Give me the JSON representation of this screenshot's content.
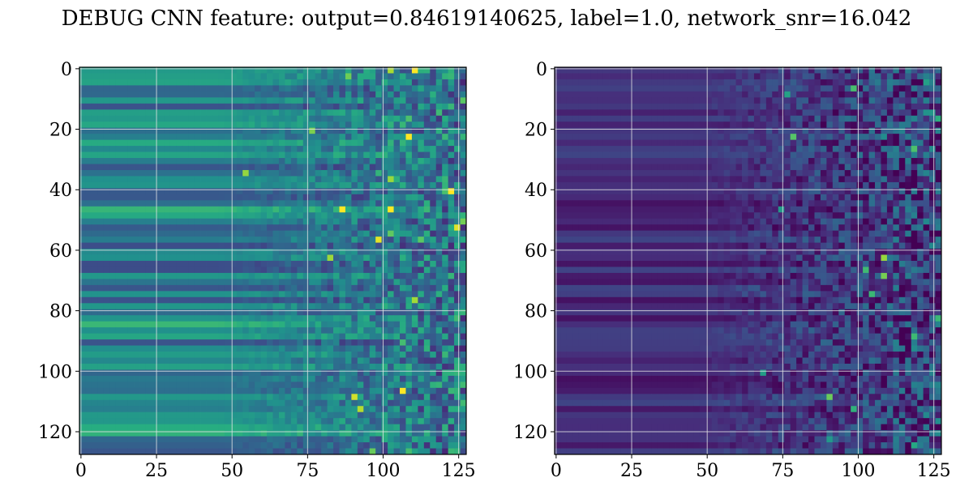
{
  "title": "DEBUG CNN feature: output=0.84619140625, label=1.0, network_snr=16.042",
  "chart_data": [
    {
      "type": "heatmap",
      "colormap": "viridis",
      "shape": [
        128,
        128
      ],
      "xlim": [
        0,
        127
      ],
      "ylim": [
        127,
        0
      ],
      "xticks": [
        0,
        25,
        50,
        75,
        100,
        125
      ],
      "yticks": [
        0,
        20,
        40,
        60,
        80,
        100,
        120
      ],
      "grid": true,
      "value_range": [
        0,
        1
      ],
      "pattern": "horizontal banded rows for columns 0-50, noisy speckled texture increasing toward columns 75-127",
      "mean_level_smooth": 0.45,
      "mean_level_noisy": 0.4
    },
    {
      "type": "heatmap",
      "colormap": "viridis",
      "shape": [
        128,
        128
      ],
      "xlim": [
        0,
        127
      ],
      "ylim": [
        127,
        0
      ],
      "xticks": [
        0,
        25,
        50,
        75,
        100,
        125
      ],
      "yticks": [
        0,
        20,
        40,
        60,
        80,
        100,
        120
      ],
      "grid": true,
      "value_range": [
        0,
        1
      ],
      "pattern": "dark banded rows for columns 0-50, noisy speckled texture with bright spots for columns 50-127",
      "mean_level_smooth": 0.12,
      "mean_level_noisy": 0.2
    }
  ]
}
